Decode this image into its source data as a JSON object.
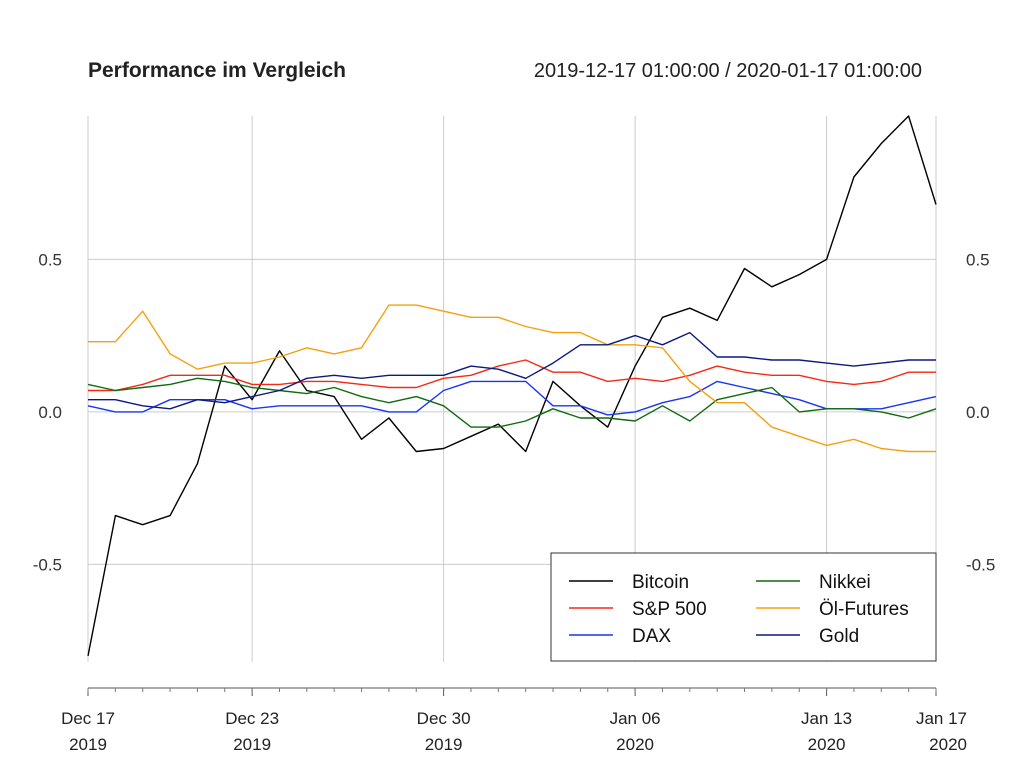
{
  "header": {
    "title": "Performance im Vergleich",
    "range": "2019-12-17 01:00:00 / 2020-01-17 01:00:00"
  },
  "chart_data": {
    "type": "line",
    "title": "Performance im Vergleich",
    "subtitle": "2019-12-17 01:00:00 / 2020-01-17 01:00:00",
    "xlabel": "",
    "ylabel": "",
    "x_range": [
      "2019-12-17",
      "2020-01-17"
    ],
    "ylim": [
      -0.82,
      0.97
    ],
    "y_ticks": [
      "0.5",
      "0.0",
      "-0.5"
    ],
    "y_tick_values": [
      0.5,
      0.0,
      -0.5
    ],
    "x_tick_dates": [
      "2019-12-17",
      "2019-12-23",
      "2019-12-30",
      "2020-01-06",
      "2020-01-13",
      "2020-01-17"
    ],
    "x_tick_labels": [
      [
        "Dec 17",
        "2019"
      ],
      [
        "Dec 23",
        "2019"
      ],
      [
        "Dec 30",
        "2019"
      ],
      [
        "Jan 06",
        "2020"
      ],
      [
        "Jan 13",
        "2020"
      ],
      [
        "Jan 17",
        "2020"
      ]
    ],
    "grid": true,
    "legend_position": "bottom-right",
    "x": [
      "2019-12-17",
      "2019-12-18",
      "2019-12-19",
      "2019-12-20",
      "2019-12-21",
      "2019-12-22",
      "2019-12-23",
      "2019-12-24",
      "2019-12-25",
      "2019-12-26",
      "2019-12-27",
      "2019-12-28",
      "2019-12-29",
      "2019-12-30",
      "2019-12-31",
      "2020-01-01",
      "2020-01-02",
      "2020-01-03",
      "2020-01-04",
      "2020-01-05",
      "2020-01-06",
      "2020-01-07",
      "2020-01-08",
      "2020-01-09",
      "2020-01-10",
      "2020-01-11",
      "2020-01-12",
      "2020-01-13",
      "2020-01-14",
      "2020-01-15",
      "2020-01-16",
      "2020-01-17"
    ],
    "series": [
      {
        "name": "Bitcoin",
        "color": "#000000",
        "values": [
          -0.8,
          -0.34,
          -0.37,
          -0.34,
          -0.17,
          0.15,
          0.04,
          0.2,
          0.07,
          0.05,
          -0.09,
          -0.02,
          -0.13,
          -0.12,
          -0.08,
          -0.04,
          -0.13,
          0.1,
          0.02,
          -0.05,
          0.15,
          0.31,
          0.34,
          0.3,
          0.47,
          0.41,
          0.45,
          0.5,
          0.77,
          0.88,
          0.97,
          0.68
        ]
      },
      {
        "name": "S&P 500",
        "color": "#f52a14",
        "values": [
          0.07,
          0.07,
          0.09,
          0.12,
          0.12,
          0.12,
          0.09,
          0.09,
          0.1,
          0.1,
          0.09,
          0.08,
          0.08,
          0.11,
          0.12,
          0.15,
          0.17,
          0.13,
          0.13,
          0.1,
          0.11,
          0.1,
          0.12,
          0.15,
          0.13,
          0.12,
          0.12,
          0.1,
          0.09,
          0.1,
          0.13,
          0.13
        ]
      },
      {
        "name": "DAX",
        "color": "#1a35f0",
        "values": [
          0.02,
          0.0,
          0.0,
          0.04,
          0.04,
          0.04,
          0.01,
          0.02,
          0.02,
          0.02,
          0.02,
          0.0,
          0.0,
          0.07,
          0.1,
          0.1,
          0.1,
          0.02,
          0.02,
          -0.01,
          0.0,
          0.03,
          0.05,
          0.1,
          0.08,
          0.06,
          0.04,
          0.01,
          0.01,
          0.01,
          0.03,
          0.05
        ]
      },
      {
        "name": "Nikkei",
        "color": "#0f6b0f",
        "values": [
          0.09,
          0.07,
          0.08,
          0.09,
          0.11,
          0.1,
          0.08,
          0.07,
          0.06,
          0.08,
          0.05,
          0.03,
          0.05,
          0.02,
          -0.05,
          -0.05,
          -0.03,
          0.01,
          -0.02,
          -0.02,
          -0.03,
          0.02,
          -0.03,
          0.04,
          0.06,
          0.08,
          0.0,
          0.01,
          0.01,
          0.0,
          -0.02,
          0.01
        ]
      },
      {
        "name": "Öl-Futures",
        "color": "#f5a010",
        "values": [
          0.23,
          0.23,
          0.33,
          0.19,
          0.14,
          0.16,
          0.16,
          0.18,
          0.21,
          0.19,
          0.21,
          0.35,
          0.35,
          0.33,
          0.31,
          0.31,
          0.28,
          0.26,
          0.26,
          0.22,
          0.22,
          0.21,
          0.1,
          0.03,
          0.03,
          -0.05,
          -0.08,
          -0.11,
          -0.09,
          -0.12,
          -0.13,
          -0.13
        ]
      },
      {
        "name": "Gold",
        "color": "#0a1a80",
        "values": [
          0.04,
          0.04,
          0.02,
          0.01,
          0.04,
          0.03,
          0.05,
          0.07,
          0.11,
          0.12,
          0.11,
          0.12,
          0.12,
          0.12,
          0.15,
          0.14,
          0.11,
          0.16,
          0.22,
          0.22,
          0.25,
          0.22,
          0.26,
          0.18,
          0.18,
          0.17,
          0.17,
          0.16,
          0.15,
          0.16,
          0.17,
          0.17
        ]
      }
    ]
  }
}
